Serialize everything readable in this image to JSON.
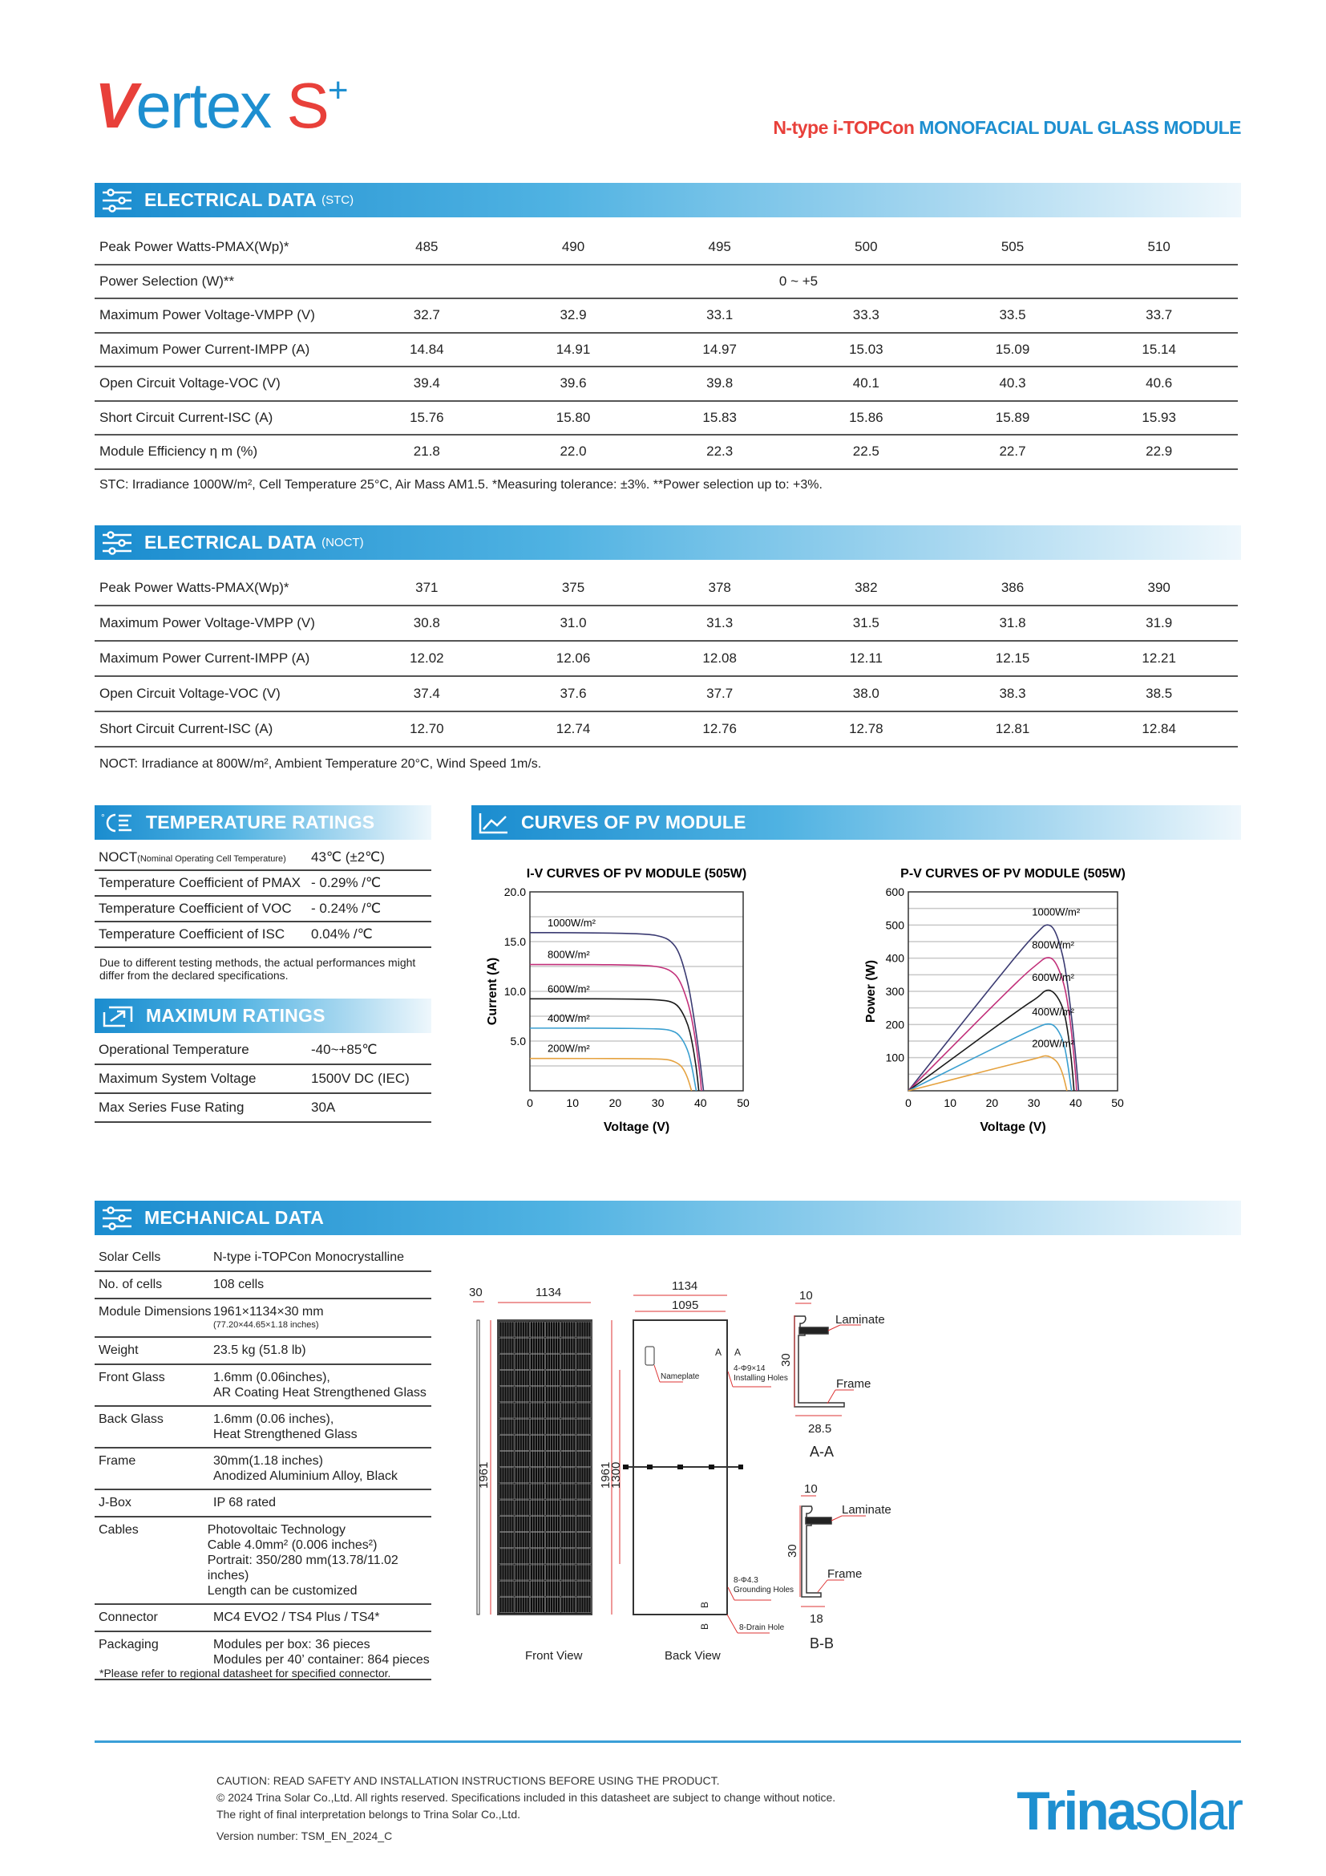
{
  "header": {
    "logo_v": "V",
    "logo_ertex": "ertex",
    "logo_s": "S",
    "logo_plus": "+",
    "subtitle_red": "N-type i-TOPCon",
    "subtitle_blue": "MONOFACIAL DUAL GLASS MODULE"
  },
  "colors": {
    "brand_blue": "#1e8fd0",
    "brand_red": "#e8403a"
  },
  "stc": {
    "title": "ELECTRICAL DATA",
    "tag": "(STC)",
    "icon": "sliders-icon",
    "rows": [
      {
        "label": "Peak Power Watts-PMAX(Wp)*",
        "values": [
          "485",
          "490",
          "495",
          "500",
          "505",
          "510"
        ]
      },
      {
        "label": "Power Selection (W)**",
        "span": "0 ~ +5"
      },
      {
        "label": "Maximum Power Voltage-VMPP (V)",
        "values": [
          "32.7",
          "32.9",
          "33.1",
          "33.3",
          "33.5",
          "33.7"
        ]
      },
      {
        "label": "Maximum Power Current-IMPP (A)",
        "values": [
          "14.84",
          "14.91",
          "14.97",
          "15.03",
          "15.09",
          "15.14"
        ]
      },
      {
        "label": "Open Circuit Voltage-VOC (V)",
        "values": [
          "39.4",
          "39.6",
          "39.8",
          "40.1",
          "40.3",
          "40.6"
        ]
      },
      {
        "label": "Short Circuit Current-ISC (A)",
        "values": [
          "15.76",
          "15.80",
          "15.83",
          "15.86",
          "15.89",
          "15.93"
        ]
      },
      {
        "label": "Module Efficiency η m (%)",
        "values": [
          "21.8",
          "22.0",
          "22.3",
          "22.5",
          "22.7",
          "22.9"
        ]
      }
    ],
    "note": "STC: Irradiance 1000W/m², Cell Temperature 25°C, Air Mass AM1.5.    *Measuring tolerance: ±3%.    **Power selection up to: +3%."
  },
  "noct": {
    "title": "ELECTRICAL DATA",
    "tag": "(NOCT)",
    "icon": "sliders-icon",
    "rows": [
      {
        "label": "Peak Power Watts-PMAX(Wp)*",
        "values": [
          "371",
          "375",
          "378",
          "382",
          "386",
          "390"
        ]
      },
      {
        "label": "Maximum Power Voltage-VMPP (V)",
        "values": [
          "30.8",
          "31.0",
          "31.3",
          "31.5",
          "31.8",
          "31.9"
        ]
      },
      {
        "label": "Maximum Power Current-IMPP (A)",
        "values": [
          "12.02",
          "12.06",
          "12.08",
          "12.11",
          "12.15",
          "12.21"
        ]
      },
      {
        "label": "Open Circuit Voltage-VOC (V)",
        "values": [
          "37.4",
          "37.6",
          "37.7",
          "38.0",
          "38.3",
          "38.5"
        ]
      },
      {
        "label": "Short Circuit Current-ISC (A)",
        "values": [
          "12.70",
          "12.74",
          "12.76",
          "12.78",
          "12.81",
          "12.84"
        ]
      }
    ],
    "note": "NOCT: Irradiance at 800W/m², Ambient Temperature 20°C, Wind Speed 1m/s."
  },
  "temperature": {
    "title": "TEMPERATURE RATINGS",
    "icon": "thermometer-icon",
    "rows": [
      {
        "label": "NOCT",
        "label_small": "(Nominal Operating Cell Temperature)",
        "value": "43℃ (±2℃)"
      },
      {
        "label": "Temperature Coefficient of PMAX",
        "value": "- 0.29% /℃"
      },
      {
        "label": "Temperature Coefficient of VOC",
        "value": "- 0.24% /℃"
      },
      {
        "label": "Temperature Coefficient of ISC",
        "value": "0.04% /℃"
      }
    ],
    "note": "Due to different testing methods, the actual performances might differ from the declared specifications."
  },
  "maximum": {
    "title": "MAXIMUM RATINGS",
    "icon": "max-ratings-icon",
    "rows": [
      {
        "label": "Operational Temperature",
        "value": "-40~+85℃"
      },
      {
        "label": "Maximum System Voltage",
        "value": "1500V DC (IEC)"
      },
      {
        "label": "Max Series Fuse Rating",
        "value": "30A"
      }
    ]
  },
  "curves": {
    "title": "CURVES OF PV MODULE",
    "icon": "curve-chart-icon"
  },
  "chart_data": [
    {
      "type": "line",
      "title": "I-V CURVES OF PV MODULE (505W)",
      "xlabel": "Voltage (V)",
      "ylabel": "Current (A)",
      "xlim": [
        0,
        50
      ],
      "ylim": [
        0,
        20
      ],
      "xticks": [
        "0",
        "10",
        "20",
        "30",
        "40",
        "50"
      ],
      "yticks": [
        "5.0",
        "10.0",
        "15.0",
        "20.0"
      ],
      "grid": true,
      "series": [
        {
          "name": "1000W/m²",
          "color": "#3b3b72",
          "points": [
            [
              0,
              15.9
            ],
            [
              10,
              15.9
            ],
            [
              20,
              15.85
            ],
            [
              28,
              15.75
            ],
            [
              31,
              15.5
            ],
            [
              33,
              15.1
            ],
            [
              35,
              14.0
            ],
            [
              37,
              11.0
            ],
            [
              38,
              8.6
            ],
            [
              39,
              5.8
            ],
            [
              40,
              2.6
            ],
            [
              40.7,
              0
            ]
          ]
        },
        {
          "name": "800W/m²",
          "color": "#c2307a",
          "points": [
            [
              0,
              12.7
            ],
            [
              10,
              12.7
            ],
            [
              20,
              12.68
            ],
            [
              28,
              12.6
            ],
            [
              31,
              12.4
            ],
            [
              33,
              12.1
            ],
            [
              35,
              11.3
            ],
            [
              37,
              9.0
            ],
            [
              38,
              7.2
            ],
            [
              39,
              4.6
            ],
            [
              40,
              1.2
            ],
            [
              40.2,
              0
            ]
          ]
        },
        {
          "name": "600W/m²",
          "color": "#1a1a1a",
          "points": [
            [
              0,
              9.25
            ],
            [
              10,
              9.25
            ],
            [
              20,
              9.24
            ],
            [
              28,
              9.2
            ],
            [
              31,
              9.1
            ],
            [
              33,
              9.0
            ],
            [
              35,
              8.5
            ],
            [
              37,
              6.8
            ],
            [
              38,
              5.0
            ],
            [
              39,
              2.4
            ],
            [
              39.6,
              0
            ]
          ]
        },
        {
          "name": "400W/m²",
          "color": "#3a9fd0",
          "points": [
            [
              0,
              6.3
            ],
            [
              10,
              6.3
            ],
            [
              20,
              6.29
            ],
            [
              28,
              6.25
            ],
            [
              31,
              6.2
            ],
            [
              33,
              6.1
            ],
            [
              35,
              5.7
            ],
            [
              37,
              4.2
            ],
            [
              38,
              2.4
            ],
            [
              39,
              0
            ]
          ]
        },
        {
          "name": "200W/m²",
          "color": "#e5a23f",
          "points": [
            [
              0,
              3.25
            ],
            [
              10,
              3.25
            ],
            [
              20,
              3.24
            ],
            [
              28,
              3.22
            ],
            [
              31,
              3.18
            ],
            [
              33,
              3.1
            ],
            [
              35,
              2.7
            ],
            [
              36,
              2.2
            ],
            [
              37,
              1.3
            ],
            [
              37.9,
              0
            ]
          ]
        }
      ]
    },
    {
      "type": "line",
      "title": "P-V CURVES OF PV MODULE (505W)",
      "xlabel": "Voltage (V)",
      "ylabel": "Power (W)",
      "xlim": [
        0,
        50
      ],
      "ylim": [
        0,
        600
      ],
      "xticks": [
        "0",
        "10",
        "20",
        "30",
        "40",
        "50"
      ],
      "yticks": [
        "100",
        "200",
        "300",
        "400",
        "500",
        "600"
      ],
      "grid": true,
      "series": [
        {
          "name": "1000W/m²",
          "color": "#3b3b72",
          "points": [
            [
              0,
              0
            ],
            [
              10,
              159
            ],
            [
              20,
              317
            ],
            [
              28,
              441
            ],
            [
              31,
              480
            ],
            [
              33,
              505
            ],
            [
              35,
              490
            ],
            [
              37,
              407
            ],
            [
              38,
              327
            ],
            [
              39,
              226
            ],
            [
              40,
              104
            ],
            [
              40.7,
              0
            ]
          ]
        },
        {
          "name": "800W/m²",
          "color": "#c2307a",
          "points": [
            [
              0,
              0
            ],
            [
              10,
              127
            ],
            [
              20,
              254
            ],
            [
              28,
              353
            ],
            [
              31,
              384
            ],
            [
              33,
              405
            ],
            [
              35,
              396
            ],
            [
              37,
              333
            ],
            [
              38,
              274
            ],
            [
              39,
              179
            ],
            [
              40,
              48
            ],
            [
              40.2,
              0
            ]
          ]
        },
        {
          "name": "600W/m²",
          "color": "#1a1a1a",
          "points": [
            [
              0,
              0
            ],
            [
              10,
              92
            ],
            [
              20,
              185
            ],
            [
              28,
              258
            ],
            [
              31,
              282
            ],
            [
              33,
              307
            ],
            [
              35,
              297
            ],
            [
              37,
              252
            ],
            [
              38,
              190
            ],
            [
              39,
              94
            ],
            [
              39.6,
              0
            ]
          ]
        },
        {
          "name": "400W/m²",
          "color": "#3a9fd0",
          "points": [
            [
              0,
              0
            ],
            [
              10,
              63
            ],
            [
              20,
              126
            ],
            [
              28,
              175
            ],
            [
              31,
              192
            ],
            [
              33,
              203
            ],
            [
              35,
              199
            ],
            [
              37,
              155
            ],
            [
              38,
              91
            ],
            [
              39,
              0
            ]
          ]
        },
        {
          "name": "200W/m²",
          "color": "#e5a23f",
          "points": [
            [
              0,
              0
            ],
            [
              10,
              32
            ],
            [
              20,
              65
            ],
            [
              28,
              90
            ],
            [
              31,
              99
            ],
            [
              33,
              108
            ],
            [
              35,
              95
            ],
            [
              36,
              79
            ],
            [
              37,
              48
            ],
            [
              37.9,
              0
            ]
          ]
        }
      ]
    }
  ],
  "mechanical": {
    "title": "MECHANICAL DATA",
    "icon": "sliders-icon",
    "rows": [
      {
        "label": "Solar Cells",
        "lines": [
          "N-type i-TOPCon Monocrystalline"
        ]
      },
      {
        "label": "No. of cells",
        "lines": [
          "108 cells"
        ]
      },
      {
        "label": "Module Dimensions",
        "lines": [
          "1961×1134×30 mm"
        ],
        "small": "(77.20×44.65×1.18 inches)"
      },
      {
        "label": "Weight",
        "lines": [
          "23.5 kg (51.8 lb)"
        ]
      },
      {
        "label": "Front Glass",
        "lines": [
          "1.6mm (0.06inches),",
          "AR Coating Heat Strengthened Glass"
        ]
      },
      {
        "label": "Back Glass",
        "lines": [
          "1.6mm (0.06 inches),",
          "Heat Strengthened Glass"
        ]
      },
      {
        "label": "Frame",
        "lines": [
          "30mm(1.18 inches)",
          "Anodized  Aluminium Alloy, Black"
        ]
      },
      {
        "label": "J-Box",
        "lines": [
          "IP 68 rated"
        ]
      },
      {
        "label": "Cables",
        "lines": [
          "Photovoltaic Technology",
          "Cable 4.0mm² (0.006 inches²)",
          "Portrait: 350/280 mm(13.78/11.02 inches)",
          "Length can be customized"
        ]
      },
      {
        "label": "Connector",
        "lines": [
          "MC4 EVO2 / TS4 Plus / TS4*"
        ]
      },
      {
        "label": "Packaging",
        "lines": [
          "Modules per box: 36 pieces",
          "Modules per 40’ container: 864 pieces"
        ]
      }
    ],
    "note": "*Please refer to regional datasheet for specified connector."
  },
  "drawings": {
    "front": {
      "caption": "Front View",
      "thickness": "30",
      "width": "1134",
      "height": "1961"
    },
    "back": {
      "caption": "Back View",
      "width": "1134",
      "inner_width": "1095",
      "height": "1961",
      "hole_span": "1300",
      "nameplate": "Nameplate",
      "install_holes": "4-Φ9×14",
      "install_holes_label": "Installing Holes",
      "ground_holes": "8-Φ4.3",
      "ground_holes_label": "Grounding Holes",
      "drain": "8-Drain Hole",
      "sec_a": "A",
      "sec_b": "B"
    },
    "section_a": {
      "caption": "A-A",
      "top": "10",
      "height": "30",
      "bottom": "28.5",
      "laminate": "Laminate",
      "frame": "Frame"
    },
    "section_b": {
      "caption": "B-B",
      "top": "10",
      "height": "30",
      "bottom": "18",
      "laminate": "Laminate",
      "frame": "Frame"
    }
  },
  "footer": {
    "lines": [
      "CAUTION: READ SAFETY AND INSTALLATION INSTRUCTIONS BEFORE USING THE PRODUCT.",
      "© 2024 Trina Solar Co.,Ltd. All rights reserved. Specifications included in this datasheet are subject to change without notice.",
      "The right of final interpretation belongs to Trina Solar Co.,Ltd."
    ],
    "version": "Version number: TSM_EN_2024_C",
    "logo_trina": "Trina",
    "logo_solar": "solar"
  }
}
